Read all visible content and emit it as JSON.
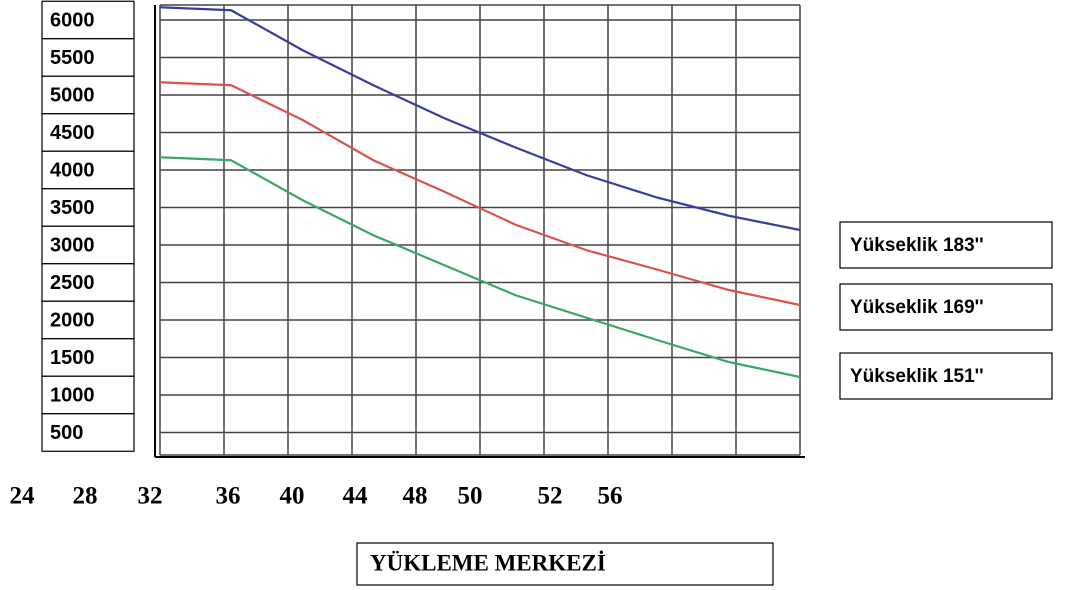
{
  "chart_data": {
    "type": "line",
    "x_label": "YÜKLEME MERKEZİ",
    "categories": [
      "24",
      "28",
      "32",
      "36",
      "40",
      "44",
      "48",
      "50",
      "52",
      "56"
    ],
    "series": [
      {
        "name": "Yükseklik 183''",
        "color": "#3a3d9e",
        "values": [
          6170,
          6130,
          5600,
          5130,
          4690,
          4300,
          3930,
          3630,
          3390,
          3200
        ]
      },
      {
        "name": "Yükseklik 169''",
        "color": "#d9534f",
        "values": [
          5170,
          5130,
          4670,
          4130,
          3710,
          3270,
          2930,
          2670,
          2400,
          2200
        ]
      },
      {
        "name": "Yükseklik 151''",
        "color": "#3aa66a",
        "values": [
          4170,
          4130,
          3600,
          3130,
          2730,
          2330,
          2030,
          1730,
          1440,
          1240
        ]
      }
    ],
    "ylim": [
      200,
      6200
    ],
    "yticks": [
      6000,
      5500,
      5000,
      4500,
      4000,
      3500,
      3000,
      2500,
      2000,
      1500,
      1000,
      500
    ],
    "grid": true
  }
}
